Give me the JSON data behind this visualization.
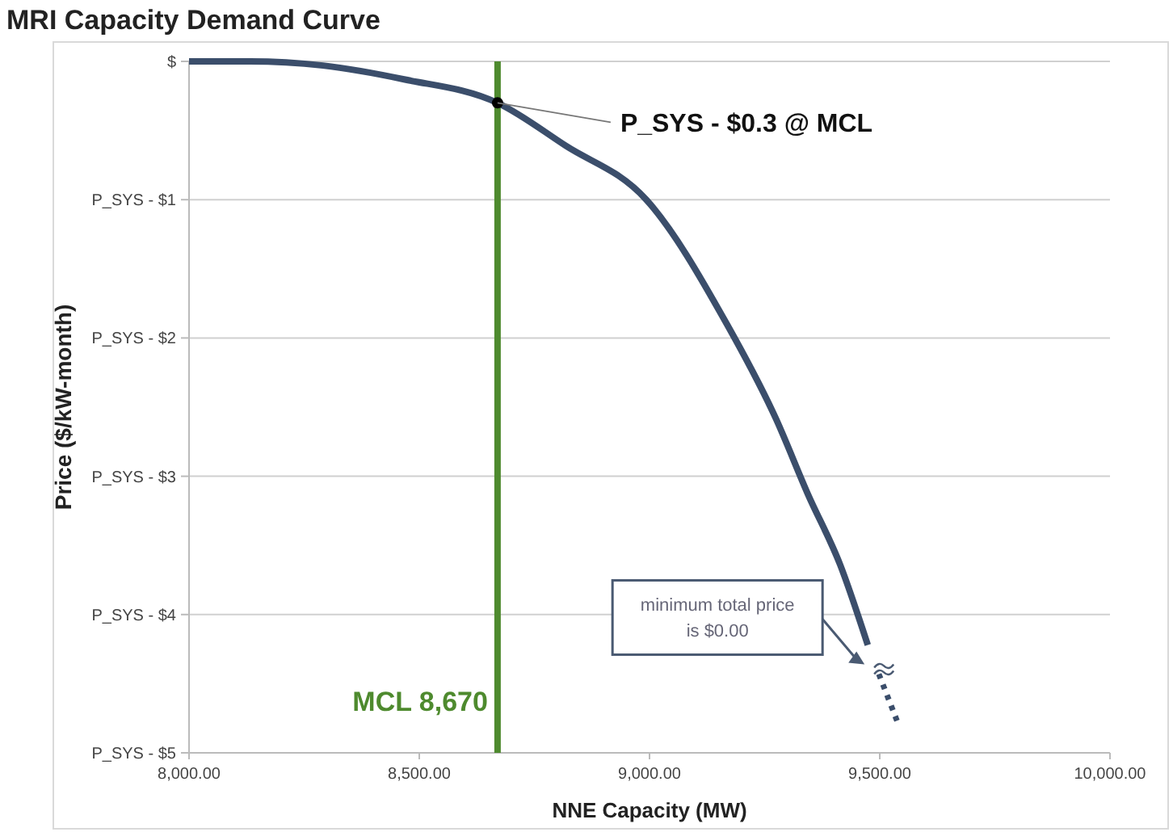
{
  "chart_data": {
    "type": "line",
    "title": "MRI Capacity Demand Curve",
    "xlabel": "NNE Capacity (MW)",
    "ylabel": "Price ($/kW-month)",
    "xlim": [
      8000,
      10000
    ],
    "xticks": [
      {
        "value": 8000,
        "label": "8,000.00"
      },
      {
        "value": 8500,
        "label": "8,500.00"
      },
      {
        "value": 9000,
        "label": "9,000.00"
      },
      {
        "value": 9500,
        "label": "9,500.00"
      },
      {
        "value": 10000,
        "label": "10,000.00"
      }
    ],
    "ylim": [
      -5,
      0
    ],
    "yticks": [
      {
        "value": 0,
        "label": "$"
      },
      {
        "value": -1,
        "label": "P_SYS - $1"
      },
      {
        "value": -2,
        "label": "P_SYS - $2"
      },
      {
        "value": -3,
        "label": "P_SYS - $3"
      },
      {
        "value": -4,
        "label": "P_SYS - $4"
      },
      {
        "value": -5,
        "label": "P_SYS - $5"
      }
    ],
    "grid": "y",
    "series": [
      {
        "color": "#3b4e6b",
        "line_style": "solid",
        "x": [
          8000,
          8133,
          8291,
          8467,
          8670,
          8818,
          8993,
          9168,
          9274,
          9344,
          9414,
          9474
        ],
        "values": [
          0,
          0,
          -0.03,
          -0.13,
          -0.3,
          -0.61,
          -1.0,
          -1.9,
          -2.58,
          -3.13,
          -3.64,
          -4.22
        ]
      },
      {
        "color": "#3b4e6b",
        "line_style": "dotted",
        "x": [
          9498,
          9540
        ],
        "values": [
          -4.43,
          -4.79
        ]
      },
      {
        "type": "scatter",
        "color": "#000000",
        "marker": "circle",
        "x": [
          8670
        ],
        "values": [
          -0.3
        ]
      }
    ],
    "ref_lines": [
      {
        "axis": "x",
        "value": 8670,
        "label": "MCL 8,670",
        "color": "#4e8a2e"
      }
    ],
    "annotations": [
      {
        "text": "P_SYS - $0.3 @ MCL",
        "x": 8670,
        "y": -0.3
      },
      "minimum total price is $0.00"
    ]
  }
}
